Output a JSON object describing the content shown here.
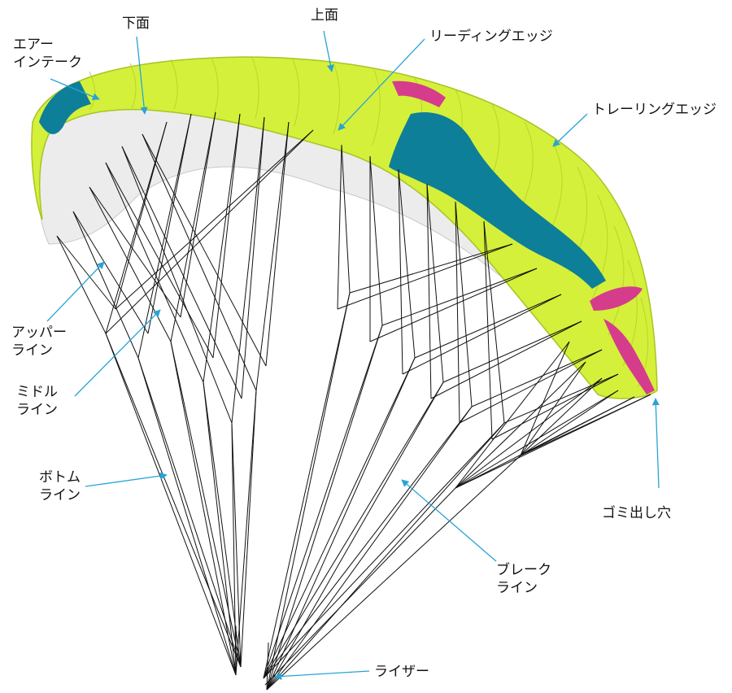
{
  "labels": {
    "lower_surface": "下面",
    "upper_surface": "上面",
    "air_intake": [
      "エアー",
      "インテーク"
    ],
    "leading_edge": "リーディングエッジ",
    "trailing_edge": "トレーリングエッジ",
    "upper_lines": [
      "アッパー",
      "ライン"
    ],
    "middle_lines": [
      "ミドル",
      "ライン"
    ],
    "bottom_lines": [
      "ボトム",
      "ライン"
    ],
    "debris_hole": "ゴミ出し穴",
    "brake_lines": [
      "ブレーク",
      "ライン"
    ],
    "riser": "ライザー"
  },
  "colors": {
    "canopy": "#d4f03a",
    "canopy_shade": "#b9d62c",
    "underside": "#ececec",
    "accent_blue": "#0e7f98",
    "accent_pink": "#d63c8c",
    "leader": "#29a3d6",
    "lines": "#111111"
  }
}
